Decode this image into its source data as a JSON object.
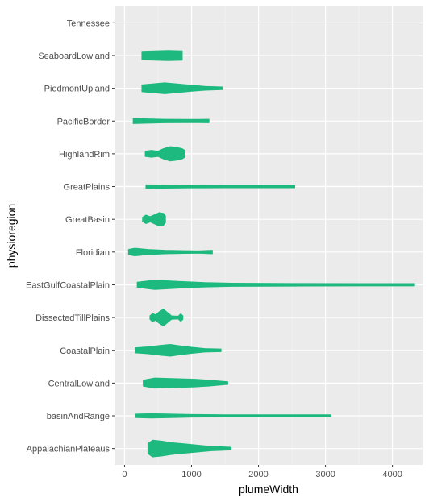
{
  "chart_data": {
    "type": "violin",
    "orientation": "horizontal",
    "xlabel": "plumeWidth",
    "ylabel": "physioregion",
    "xlim": [
      -150,
      4450
    ],
    "xticks": [
      0,
      1000,
      2000,
      3000,
      4000
    ],
    "grid": true,
    "fill_color": "#1DB97E",
    "panel_color": "#EBEBEB",
    "categories": [
      "AppalachianPlateaus",
      "basinAndRange",
      "CentralLowland",
      "CoastalPlain",
      "DissectedTillPlains",
      "EastGulfCoastalPlain",
      "Floridian",
      "GreatBasin",
      "GreatPlains",
      "HighlandRim",
      "PacificBorder",
      "PiedmontUpland",
      "SeaboardLowland",
      "Tennessee"
    ],
    "violins": [
      {
        "category": "AppalachianPlateaus",
        "min": 350,
        "max": 1590,
        "profile": [
          [
            350,
            0.6
          ],
          [
            420,
            1
          ],
          [
            550,
            0.9
          ],
          [
            700,
            0.7
          ],
          [
            900,
            0.55
          ],
          [
            1100,
            0.4
          ],
          [
            1300,
            0.25
          ],
          [
            1450,
            0.2
          ],
          [
            1590,
            0.15
          ]
        ]
      },
      {
        "category": "basinAndRange",
        "min": 170,
        "max": 3080,
        "profile": [
          [
            170,
            0.2
          ],
          [
            400,
            0.25
          ],
          [
            700,
            0.2
          ],
          [
            1000,
            0.15
          ],
          [
            1500,
            0.12
          ],
          [
            2000,
            0.12
          ],
          [
            2500,
            0.12
          ],
          [
            3080,
            0.12
          ]
        ]
      },
      {
        "category": "CentralLowland",
        "min": 280,
        "max": 1540,
        "profile": [
          [
            280,
            0.35
          ],
          [
            450,
            0.6
          ],
          [
            650,
            0.55
          ],
          [
            850,
            0.5
          ],
          [
            1050,
            0.45
          ],
          [
            1250,
            0.35
          ],
          [
            1400,
            0.25
          ],
          [
            1540,
            0.15
          ]
        ]
      },
      {
        "category": "CoastalPlain",
        "min": 160,
        "max": 1440,
        "profile": [
          [
            160,
            0.3
          ],
          [
            350,
            0.4
          ],
          [
            500,
            0.55
          ],
          [
            680,
            0.7
          ],
          [
            850,
            0.5
          ],
          [
            1000,
            0.35
          ],
          [
            1200,
            0.2
          ],
          [
            1440,
            0.15
          ]
        ]
      },
      {
        "category": "DissectedTillPlains",
        "min": 380,
        "max": 870,
        "profile": [
          [
            380,
            0.2
          ],
          [
            420,
            0.5
          ],
          [
            460,
            0.3
          ],
          [
            520,
            0.7
          ],
          [
            580,
            1
          ],
          [
            640,
            0.6
          ],
          [
            700,
            0.2
          ],
          [
            800,
            0.15
          ],
          [
            840,
            0.45
          ],
          [
            870,
            0.2
          ]
        ]
      },
      {
        "category": "EastGulfCoastalPlain",
        "min": 190,
        "max": 4330,
        "profile": [
          [
            190,
            0.3
          ],
          [
            450,
            0.55
          ],
          [
            800,
            0.4
          ],
          [
            1200,
            0.25
          ],
          [
            1600,
            0.18
          ],
          [
            2500,
            0.15
          ],
          [
            3500,
            0.13
          ],
          [
            4330,
            0.13
          ]
        ]
      },
      {
        "category": "Floridian",
        "min": 60,
        "max": 1310,
        "profile": [
          [
            60,
            0.3
          ],
          [
            150,
            0.45
          ],
          [
            350,
            0.3
          ],
          [
            600,
            0.2
          ],
          [
            900,
            0.15
          ],
          [
            1100,
            0.13
          ],
          [
            1310,
            0.2
          ]
        ]
      },
      {
        "category": "GreatBasin",
        "min": 270,
        "max": 610,
        "profile": [
          [
            270,
            0.25
          ],
          [
            320,
            0.5
          ],
          [
            380,
            0.3
          ],
          [
            450,
            0.55
          ],
          [
            520,
            0.8
          ],
          [
            580,
            0.7
          ],
          [
            610,
            0.4
          ]
        ]
      },
      {
        "category": "GreatPlains",
        "min": 320,
        "max": 2540,
        "profile": [
          [
            320,
            0.2
          ],
          [
            600,
            0.18
          ],
          [
            1000,
            0.15
          ],
          [
            1500,
            0.13
          ],
          [
            2000,
            0.13
          ],
          [
            2540,
            0.13
          ]
        ]
      },
      {
        "category": "HighlandRim",
        "min": 310,
        "max": 900,
        "profile": [
          [
            310,
            0.3
          ],
          [
            400,
            0.4
          ],
          [
            500,
            0.3
          ],
          [
            580,
            0.6
          ],
          [
            680,
            0.85
          ],
          [
            780,
            0.75
          ],
          [
            860,
            0.6
          ],
          [
            900,
            0.4
          ]
        ]
      },
      {
        "category": "PacificBorder",
        "min": 130,
        "max": 1260,
        "profile": [
          [
            130,
            0.3
          ],
          [
            350,
            0.25
          ],
          [
            600,
            0.2
          ],
          [
            900,
            0.18
          ],
          [
            1100,
            0.18
          ],
          [
            1260,
            0.2
          ]
        ]
      },
      {
        "category": "PiedmontUpland",
        "min": 260,
        "max": 1460,
        "profile": [
          [
            260,
            0.4
          ],
          [
            400,
            0.5
          ],
          [
            600,
            0.65
          ],
          [
            800,
            0.5
          ],
          [
            1000,
            0.35
          ],
          [
            1200,
            0.22
          ],
          [
            1460,
            0.15
          ]
        ]
      },
      {
        "category": "SeaboardLowland",
        "min": 260,
        "max": 860,
        "profile": [
          [
            260,
            0.5
          ],
          [
            450,
            0.55
          ],
          [
            650,
            0.6
          ],
          [
            860,
            0.55
          ]
        ]
      },
      {
        "category": "Tennessee",
        "min": 0,
        "max": 0,
        "profile": []
      }
    ]
  }
}
